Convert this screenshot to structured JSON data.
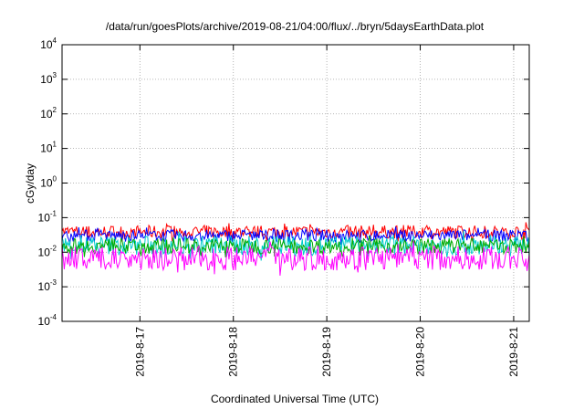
{
  "chart_data": {
    "type": "line",
    "title": "/data/run/goesPlots/archive/2019-08-21/04:00/flux/../bryn/5daysEarthData.plot",
    "xlabel": "Coordinated Universal Time (UTC)",
    "ylabel": "cGy/day",
    "yscale": "log",
    "ylim": [
      0.0001,
      10000
    ],
    "xlim": [
      "2019-08-16 04:00",
      "2019-08-21 04:00"
    ],
    "grid": true,
    "legend": "none",
    "y_ticks": [
      {
        "base": "10",
        "exp": "-4",
        "value": 0.0001
      },
      {
        "base": "10",
        "exp": "-3",
        "value": 0.001
      },
      {
        "base": "10",
        "exp": "-2",
        "value": 0.01
      },
      {
        "base": "10",
        "exp": "-1",
        "value": 0.1
      },
      {
        "base": "10",
        "exp": "0",
        "value": 1
      },
      {
        "base": "10",
        "exp": "1",
        "value": 10
      },
      {
        "base": "10",
        "exp": "2",
        "value": 100
      },
      {
        "base": "10",
        "exp": "3",
        "value": 1000
      },
      {
        "base": "10",
        "exp": "4",
        "value": 10000
      }
    ],
    "x_ticks": [
      "2019-8-17",
      "2019-8-18",
      "2019-8-19",
      "2019-8-20",
      "2019-8-21"
    ],
    "series": [
      {
        "color": "#ff0000",
        "typical_low": 0.025,
        "typical_high": 0.06
      },
      {
        "color": "#0000ff",
        "typical_low": 0.02,
        "typical_high": 0.045
      },
      {
        "color": "#00cccc",
        "typical_low": 0.008,
        "typical_high": 0.03
      },
      {
        "color": "#00aa00",
        "typical_low": 0.009,
        "typical_high": 0.025
      },
      {
        "color": "#ff00ff",
        "typical_low": 0.003,
        "typical_high": 0.015
      }
    ]
  }
}
